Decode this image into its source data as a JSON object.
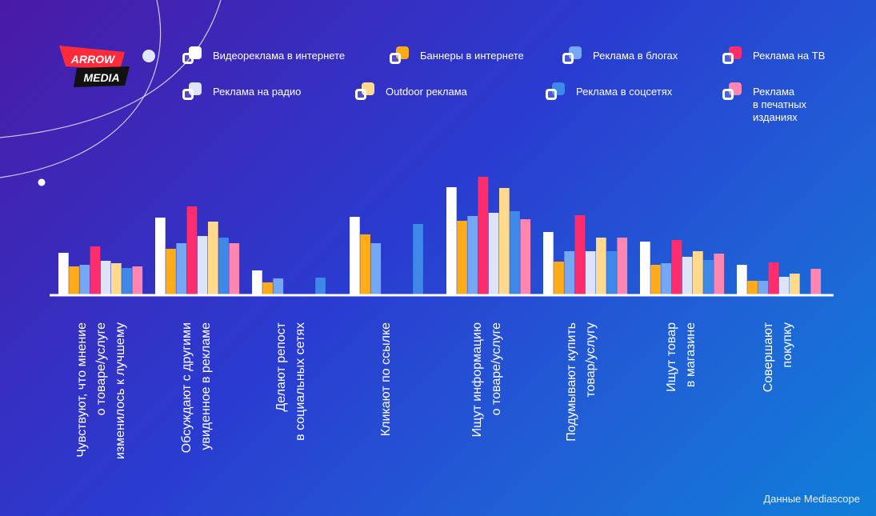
{
  "logo": {
    "line1": "ARROW",
    "line2": "MEDIA"
  },
  "legend": [
    {
      "name": "Видеореклама в интернете",
      "color": "#ffffff"
    },
    {
      "name": "Баннеры в интернете",
      "color": "#ffab1a"
    },
    {
      "name": "Реклама в блогах",
      "color": "#74a8f5"
    },
    {
      "name": "Реклама на ТВ",
      "color": "#ff2d6e"
    },
    {
      "name": "Реклама на радио",
      "color": "#dde3f8"
    },
    {
      "name": "Outdoor реклама",
      "color": "#ffd98c"
    },
    {
      "name": "Реклама в соцсетях",
      "color": "#3d88e8"
    },
    {
      "name": "Реклама\nв печатных\nизданиях",
      "color": "#ff86b0"
    }
  ],
  "chart_data": {
    "type": "bar",
    "categories": [
      "Чувствуют, что мнение\nо товаре/услуге\nизменилось к лучшему",
      "Обсуждают с другими\nувиденное в рекламе",
      "Делают репост\nв социальных сетях",
      "Кликают по ссылке",
      "Ищут информацию\nо товаре/услуге",
      "Подумывают купить\nтовар/услугу",
      "Ищут товар\nв магазине",
      "Совершают\nпокупку"
    ],
    "series": [
      {
        "name": "Видеореклама в интернете",
        "values": [
          52,
          96,
          30,
          97,
          134,
          78,
          66,
          37
        ]
      },
      {
        "name": "Баннеры в интернете",
        "values": [
          35,
          57,
          15,
          75,
          92,
          41,
          37,
          17
        ]
      },
      {
        "name": "Реклама в блогах",
        "values": [
          37,
          64,
          20,
          64,
          98,
          54,
          39,
          17
        ]
      },
      {
        "name": "Реклама на ТВ",
        "values": [
          60,
          110,
          null,
          null,
          147,
          99,
          68,
          40
        ]
      },
      {
        "name": "Реклама на радио",
        "values": [
          42,
          73,
          null,
          null,
          102,
          54,
          47,
          22
        ]
      },
      {
        "name": "Outdoor реклама",
        "values": [
          39,
          91,
          null,
          null,
          133,
          71,
          54,
          26
        ]
      },
      {
        "name": "Реклама в соцсетях",
        "values": [
          33,
          71,
          21,
          88,
          104,
          54,
          43,
          null
        ]
      },
      {
        "name": "Реклама в печатных изданиях",
        "values": [
          35,
          64,
          null,
          null,
          94,
          71,
          51,
          32
        ]
      }
    ],
    "ylim": [
      0,
      160
    ],
    "grid": false,
    "legend_position": "top"
  },
  "source": "Данные Mediascope"
}
